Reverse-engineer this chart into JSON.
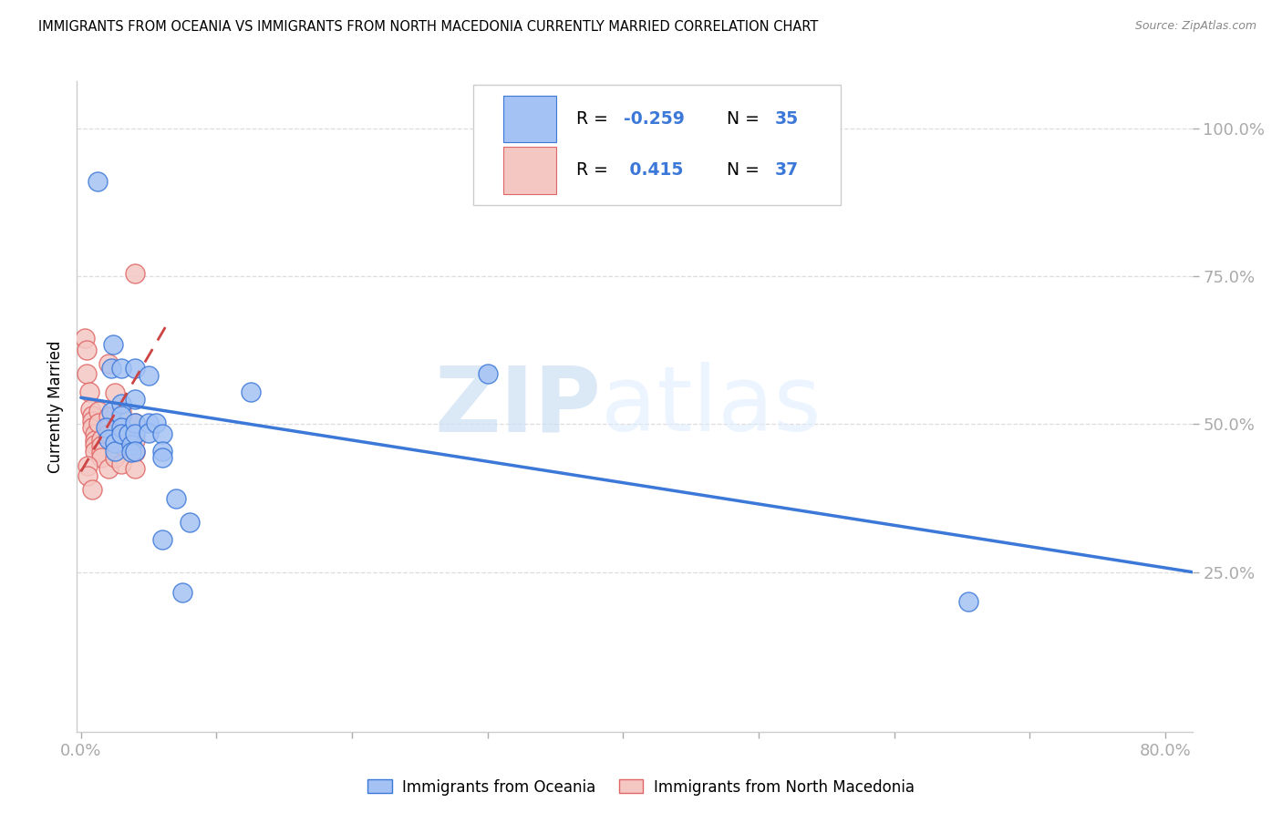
{
  "title": "IMMIGRANTS FROM OCEANIA VS IMMIGRANTS FROM NORTH MACEDONIA CURRENTLY MARRIED CORRELATION CHART",
  "source": "Source: ZipAtlas.com",
  "ylabel": "Currently Married",
  "xlim": [
    -0.003,
    0.82
  ],
  "ylim": [
    -0.02,
    1.08
  ],
  "y_ticks": [
    0.25,
    0.5,
    0.75,
    1.0
  ],
  "y_tick_labels": [
    "25.0%",
    "50.0%",
    "75.0%",
    "100.0%"
  ],
  "x_ticks": [
    0.0,
    0.1,
    0.2,
    0.3,
    0.4,
    0.5,
    0.6,
    0.7,
    0.8
  ],
  "x_tick_labels": [
    "0.0%",
    "",
    "",
    "",
    "",
    "",
    "",
    "",
    "80.0%"
  ],
  "watermark_zip": "ZIP",
  "watermark_atlas": "atlas",
  "legend_R_blue": "-0.259",
  "legend_N_blue": "35",
  "legend_R_pink": "0.415",
  "legend_N_pink": "37",
  "blue_dot_color": "#a4c2f4",
  "blue_dot_edge": "#3c78d8",
  "pink_dot_color": "#f4c7c3",
  "pink_dot_edge": "#e06666",
  "blue_line_color": "#3c78d8",
  "pink_line_color": "#cc4444",
  "tick_color": "#4472c4",
  "blue_scatter": [
    [
      0.012,
      0.91
    ],
    [
      0.024,
      0.635
    ],
    [
      0.022,
      0.595
    ],
    [
      0.022,
      0.52
    ],
    [
      0.018,
      0.495
    ],
    [
      0.02,
      0.475
    ],
    [
      0.025,
      0.468
    ],
    [
      0.025,
      0.455
    ],
    [
      0.03,
      0.595
    ],
    [
      0.03,
      0.535
    ],
    [
      0.03,
      0.515
    ],
    [
      0.03,
      0.495
    ],
    [
      0.03,
      0.483
    ],
    [
      0.035,
      0.483
    ],
    [
      0.037,
      0.465
    ],
    [
      0.037,
      0.453
    ],
    [
      0.04,
      0.595
    ],
    [
      0.04,
      0.543
    ],
    [
      0.04,
      0.503
    ],
    [
      0.04,
      0.483
    ],
    [
      0.04,
      0.455
    ],
    [
      0.05,
      0.583
    ],
    [
      0.05,
      0.503
    ],
    [
      0.05,
      0.485
    ],
    [
      0.055,
      0.503
    ],
    [
      0.06,
      0.483
    ],
    [
      0.06,
      0.455
    ],
    [
      0.06,
      0.443
    ],
    [
      0.06,
      0.305
    ],
    [
      0.07,
      0.375
    ],
    [
      0.08,
      0.335
    ],
    [
      0.075,
      0.215
    ],
    [
      0.125,
      0.555
    ],
    [
      0.3,
      0.585
    ],
    [
      0.655,
      0.2
    ]
  ],
  "pink_scatter": [
    [
      0.003,
      0.645
    ],
    [
      0.004,
      0.625
    ],
    [
      0.004,
      0.585
    ],
    [
      0.006,
      0.555
    ],
    [
      0.007,
      0.525
    ],
    [
      0.008,
      0.515
    ],
    [
      0.008,
      0.505
    ],
    [
      0.008,
      0.495
    ],
    [
      0.01,
      0.484
    ],
    [
      0.01,
      0.473
    ],
    [
      0.01,
      0.465
    ],
    [
      0.01,
      0.455
    ],
    [
      0.013,
      0.523
    ],
    [
      0.013,
      0.503
    ],
    [
      0.015,
      0.475
    ],
    [
      0.015,
      0.463
    ],
    [
      0.015,
      0.453
    ],
    [
      0.015,
      0.443
    ],
    [
      0.02,
      0.603
    ],
    [
      0.02,
      0.513
    ],
    [
      0.02,
      0.495
    ],
    [
      0.02,
      0.483
    ],
    [
      0.02,
      0.425
    ],
    [
      0.025,
      0.553
    ],
    [
      0.025,
      0.483
    ],
    [
      0.025,
      0.443
    ],
    [
      0.03,
      0.523
    ],
    [
      0.03,
      0.465
    ],
    [
      0.03,
      0.433
    ],
    [
      0.04,
      0.503
    ],
    [
      0.04,
      0.473
    ],
    [
      0.04,
      0.453
    ],
    [
      0.04,
      0.425
    ],
    [
      0.04,
      0.755
    ],
    [
      0.005,
      0.43
    ],
    [
      0.005,
      0.413
    ],
    [
      0.008,
      0.39
    ]
  ],
  "blue_trend_x": [
    0.0,
    0.82
  ],
  "blue_trend_y": [
    0.545,
    0.25
  ],
  "pink_trend_x": [
    0.0,
    0.065
  ],
  "pink_trend_y": [
    0.42,
    0.675
  ]
}
